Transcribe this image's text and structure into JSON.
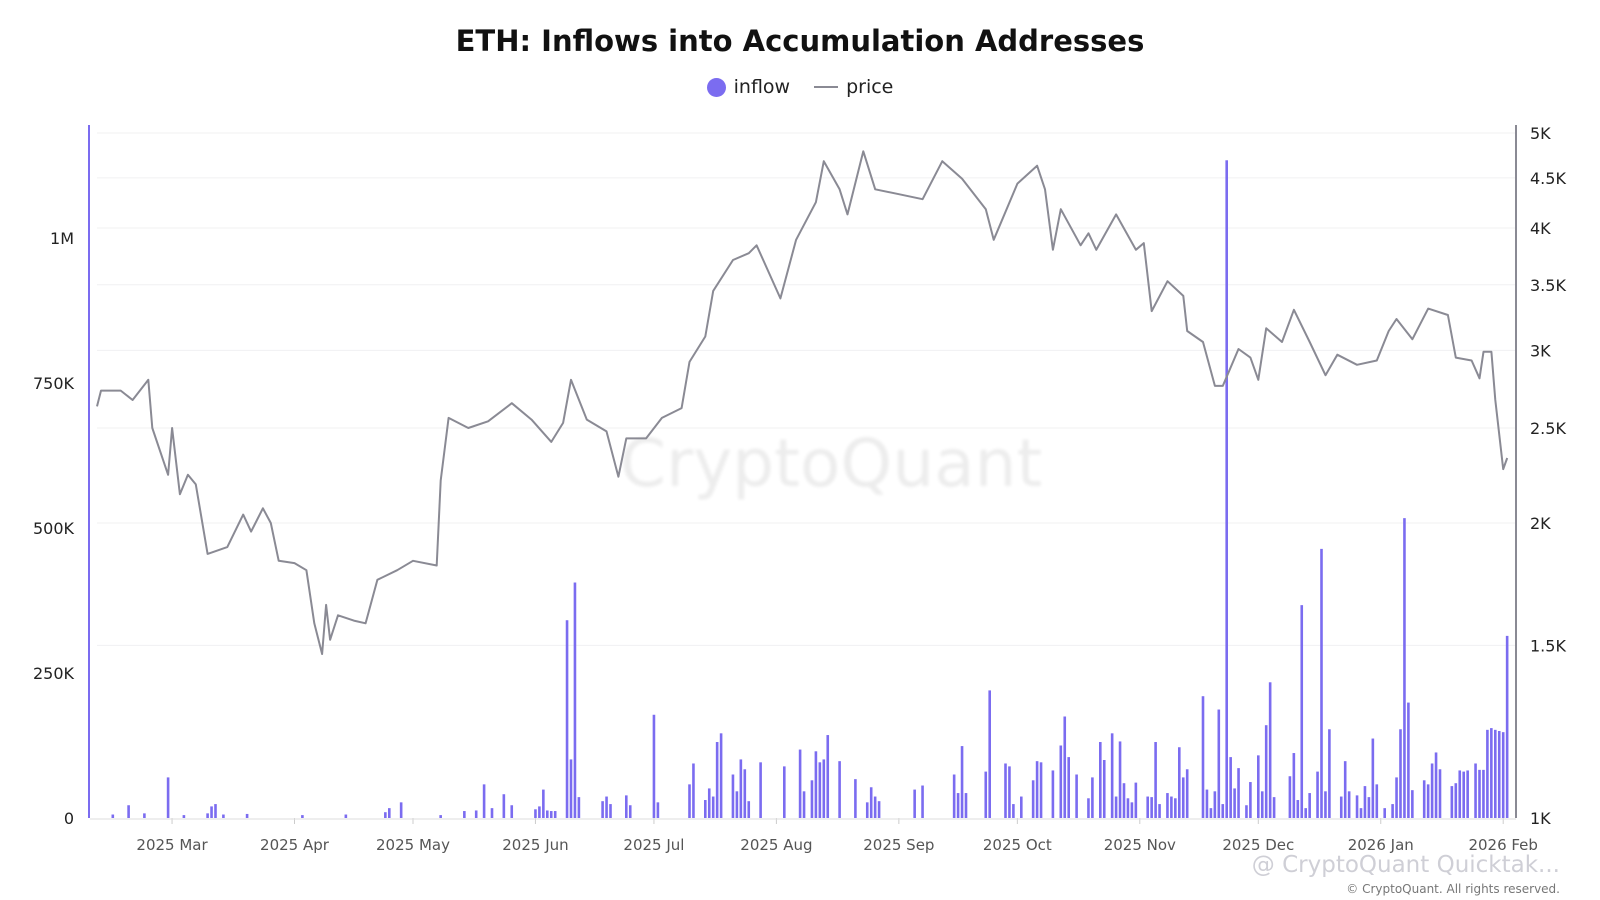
{
  "title": "ETH: Inflows into Accumulation Addresses",
  "watermark": "CryptoQuant",
  "footer": {
    "overlay": "@ CryptoQuant Quicktak...",
    "copyright": "© CryptoQuant. All rights reserved."
  },
  "colors": {
    "inflow": "#7b6cf0",
    "price": "#8a8a94",
    "grid": "#f0f0f2"
  },
  "chart_data": {
    "type": "bar+line",
    "title": "ETH: Inflows into Accumulation Addresses",
    "legend": {
      "placement": "top-center",
      "entries": [
        "inflow",
        "price"
      ]
    },
    "x_ticks": [
      "2025 Mar",
      "2025 Apr",
      "2025 May",
      "2025 Jun",
      "2025 Jul",
      "2025 Aug",
      "2025 Sep",
      "2025 Oct",
      "2025 Nov",
      "2025 Dec",
      "2026 Jan",
      "2026 Feb"
    ],
    "x_tick_dates": [
      "2025-03-01",
      "2025-04-01",
      "2025-05-01",
      "2025-06-01",
      "2025-07-01",
      "2025-08-01",
      "2025-09-01",
      "2025-10-01",
      "2025-11-01",
      "2025-12-01",
      "2026-01-01",
      "2026-02-01"
    ],
    "xlim": [
      "2025-02-10",
      "2026-02-03"
    ],
    "y_left": {
      "ticks": [
        0,
        250000,
        500000,
        750000,
        1000000
      ],
      "tick_labels": [
        "0",
        "250K",
        "500K",
        "750K",
        "1M"
      ],
      "ylim": [
        0,
        1200000
      ]
    },
    "y_right": {
      "scale": "log",
      "ticks": [
        1000,
        1500,
        2000,
        2500,
        3000,
        3500,
        4000,
        4500,
        5000
      ],
      "tick_labels": [
        "1K",
        "1.5K",
        "2K",
        "2.5K",
        "3K",
        "3.5K",
        "4K",
        "4.5K",
        "5K"
      ],
      "ylim": [
        1000,
        5000
      ]
    },
    "grid": true,
    "series": [
      {
        "name": "inflow",
        "type": "bar",
        "axis": "left",
        "dates": [
          "2025-02-14",
          "2025-02-18",
          "2025-02-22",
          "2025-02-28",
          "2025-03-04",
          "2025-03-10",
          "2025-03-11",
          "2025-03-12",
          "2025-03-14",
          "2025-03-20",
          "2025-04-03",
          "2025-04-14",
          "2025-04-24",
          "2025-04-25",
          "2025-04-28",
          "2025-05-08",
          "2025-05-14",
          "2025-05-17",
          "2025-05-19",
          "2025-05-21",
          "2025-05-24",
          "2025-05-26",
          "2025-06-01",
          "2025-06-02",
          "2025-06-03",
          "2025-06-04",
          "2025-06-05",
          "2025-06-06",
          "2025-06-09",
          "2025-06-10",
          "2025-06-11",
          "2025-06-12",
          "2025-06-18",
          "2025-06-19",
          "2025-06-20",
          "2025-06-24",
          "2025-06-25",
          "2025-07-01",
          "2025-07-02",
          "2025-07-10",
          "2025-07-11",
          "2025-07-14",
          "2025-07-15",
          "2025-07-16",
          "2025-07-17",
          "2025-07-18",
          "2025-07-21",
          "2025-07-22",
          "2025-07-23",
          "2025-07-24",
          "2025-07-25",
          "2025-07-28",
          "2025-08-03",
          "2025-08-07",
          "2025-08-08",
          "2025-08-10",
          "2025-08-11",
          "2025-08-12",
          "2025-08-13",
          "2025-08-14",
          "2025-08-17",
          "2025-08-21",
          "2025-08-24",
          "2025-08-25",
          "2025-08-26",
          "2025-08-27",
          "2025-09-05",
          "2025-09-07",
          "2025-09-15",
          "2025-09-16",
          "2025-09-17",
          "2025-09-18",
          "2025-09-23",
          "2025-09-24",
          "2025-09-28",
          "2025-09-29",
          "2025-09-30",
          "2025-10-02",
          "2025-10-05",
          "2025-10-06",
          "2025-10-07",
          "2025-10-10",
          "2025-10-12",
          "2025-10-13",
          "2025-10-14",
          "2025-10-16",
          "2025-10-19",
          "2025-10-20",
          "2025-10-22",
          "2025-10-23",
          "2025-10-25",
          "2025-10-26",
          "2025-10-27",
          "2025-10-28",
          "2025-10-29",
          "2025-10-30",
          "2025-10-31",
          "2025-11-03",
          "2025-11-04",
          "2025-11-05",
          "2025-11-06",
          "2025-11-08",
          "2025-11-09",
          "2025-11-10",
          "2025-11-11",
          "2025-11-12",
          "2025-11-13",
          "2025-11-17",
          "2025-11-18",
          "2025-11-19",
          "2025-11-20",
          "2025-11-21",
          "2025-11-22",
          "2025-11-23",
          "2025-11-24",
          "2025-11-25",
          "2025-11-26",
          "2025-11-28",
          "2025-11-29",
          "2025-12-01",
          "2025-12-02",
          "2025-12-03",
          "2025-12-04",
          "2025-12-05",
          "2025-12-09",
          "2025-12-10",
          "2025-12-11",
          "2025-12-12",
          "2025-12-13",
          "2025-12-14",
          "2025-12-16",
          "2025-12-17",
          "2025-12-18",
          "2025-12-19",
          "2025-12-22",
          "2025-12-23",
          "2025-12-24",
          "2025-12-26",
          "2025-12-27",
          "2025-12-28",
          "2025-12-29",
          "2025-12-30",
          "2025-12-31",
          "2026-01-02",
          "2026-01-04",
          "2026-01-05",
          "2026-01-06",
          "2026-01-07",
          "2026-01-08",
          "2026-01-09",
          "2026-01-12",
          "2026-01-13",
          "2026-01-14",
          "2026-01-15",
          "2026-01-16",
          "2026-01-19",
          "2026-01-20",
          "2026-01-21",
          "2026-01-22",
          "2026-01-23",
          "2026-01-25",
          "2026-01-26",
          "2026-01-27",
          "2026-01-28",
          "2026-01-29",
          "2026-01-30",
          "2026-01-31",
          "2026-02-01",
          "2026-02-02"
        ],
        "values": [
          6000,
          22000,
          8000,
          70000,
          5000,
          8000,
          20000,
          24000,
          6000,
          7000,
          5000,
          6000,
          10000,
          17000,
          27000,
          5000,
          12000,
          13000,
          58000,
          17000,
          41000,
          22000,
          15000,
          20000,
          49000,
          13000,
          12000,
          12000,
          341000,
          101000,
          406000,
          36000,
          29000,
          37000,
          24000,
          39000,
          22000,
          178000,
          27000,
          58000,
          94000,
          31000,
          51000,
          37000,
          131000,
          146000,
          75000,
          46000,
          101000,
          84000,
          29000,
          96000,
          89000,
          118000,
          46000,
          65000,
          115000,
          96000,
          101000,
          143000,
          98000,
          67000,
          27000,
          53000,
          37000,
          29000,
          49000,
          56000,
          75000,
          43000,
          124000,
          43000,
          80000,
          220000,
          94000,
          89000,
          24000,
          37000,
          65000,
          98000,
          96000,
          82000,
          125000,
          175000,
          105000,
          75000,
          34000,
          70000,
          131000,
          100000,
          146000,
          37000,
          132000,
          60000,
          34000,
          27000,
          61000,
          37000,
          36000,
          131000,
          24000,
          43000,
          37000,
          34000,
          122000,
          70000,
          84000,
          210000,
          49000,
          17000,
          46000,
          187000,
          24000,
          1134000,
          105000,
          51000,
          86000,
          22000,
          62000,
          108000,
          46000,
          160000,
          234000,
          36000,
          72000,
          112000,
          31000,
          367000,
          17000,
          43000,
          80000,
          464000,
          46000,
          153000,
          37000,
          98000,
          46000,
          39000,
          17000,
          55000,
          36000,
          137000,
          58000,
          17000,
          24000,
          70000,
          153000,
          517000,
          199000,
          48000,
          65000,
          58000,
          94000,
          113000,
          84000,
          55000,
          60000,
          82000,
          80000,
          82000,
          94000,
          83000,
          83000,
          152000,
          155000,
          152000,
          150000,
          148000,
          314000
        ]
      },
      {
        "name": "price",
        "type": "line",
        "axis": "right",
        "dates": [
          "2025-02-10",
          "2025-02-11",
          "2025-02-16",
          "2025-02-19",
          "2025-02-23",
          "2025-02-24",
          "2025-02-28",
          "2025-03-01",
          "2025-03-03",
          "2025-03-05",
          "2025-03-07",
          "2025-03-10",
          "2025-03-15",
          "2025-03-19",
          "2025-03-21",
          "2025-03-24",
          "2025-03-26",
          "2025-03-28",
          "2025-04-01",
          "2025-04-04",
          "2025-04-06",
          "2025-04-08",
          "2025-04-09",
          "2025-04-10",
          "2025-04-12",
          "2025-04-16",
          "2025-04-19",
          "2025-04-22",
          "2025-04-27",
          "2025-05-01",
          "2025-05-07",
          "2025-05-08",
          "2025-05-10",
          "2025-05-15",
          "2025-05-20",
          "2025-05-26",
          "2025-05-31",
          "2025-06-05",
          "2025-06-08",
          "2025-06-10",
          "2025-06-14",
          "2025-06-19",
          "2025-06-22",
          "2025-06-24",
          "2025-06-29",
          "2025-07-03",
          "2025-07-08",
          "2025-07-10",
          "2025-07-14",
          "2025-07-16",
          "2025-07-21",
          "2025-07-25",
          "2025-07-27",
          "2025-08-02",
          "2025-08-06",
          "2025-08-11",
          "2025-08-13",
          "2025-08-17",
          "2025-08-19",
          "2025-08-23",
          "2025-08-26",
          "2025-09-01",
          "2025-09-07",
          "2025-09-12",
          "2025-09-17",
          "2025-09-23",
          "2025-09-25",
          "2025-10-01",
          "2025-10-06",
          "2025-10-08",
          "2025-10-10",
          "2025-10-12",
          "2025-10-17",
          "2025-10-19",
          "2025-10-21",
          "2025-10-26",
          "2025-10-31",
          "2025-11-02",
          "2025-11-04",
          "2025-11-08",
          "2025-11-12",
          "2025-11-13",
          "2025-11-17",
          "2025-11-20",
          "2025-11-22",
          "2025-11-26",
          "2025-11-29",
          "2025-12-01",
          "2025-12-03",
          "2025-12-07",
          "2025-12-10",
          "2025-12-14",
          "2025-12-18",
          "2025-12-21",
          "2025-12-26",
          "2025-12-31",
          "2026-01-03",
          "2026-01-05",
          "2026-01-09",
          "2026-01-13",
          "2026-01-18",
          "2026-01-20",
          "2026-01-24",
          "2026-01-26",
          "2026-01-27",
          "2026-01-29",
          "2026-01-30",
          "2026-02-01",
          "2026-02-02"
        ],
        "values": [
          2630,
          2730,
          2730,
          2670,
          2800,
          2500,
          2240,
          2500,
          2140,
          2240,
          2190,
          1860,
          1890,
          2040,
          1960,
          2070,
          2000,
          1830,
          1820,
          1790,
          1580,
          1470,
          1650,
          1520,
          1610,
          1590,
          1580,
          1750,
          1790,
          1830,
          1810,
          2210,
          2560,
          2500,
          2540,
          2650,
          2550,
          2420,
          2530,
          2800,
          2550,
          2480,
          2230,
          2440,
          2440,
          2560,
          2620,
          2920,
          3100,
          3450,
          3710,
          3770,
          3840,
          3390,
          3890,
          4250,
          4680,
          4380,
          4130,
          4790,
          4380,
          4330,
          4280,
          4680,
          4490,
          4180,
          3890,
          4440,
          4630,
          4380,
          3800,
          4180,
          3840,
          3950,
          3800,
          4130,
          3800,
          3860,
          3290,
          3530,
          3410,
          3140,
          3060,
          2760,
          2760,
          3010,
          2950,
          2800,
          3160,
          3060,
          3300,
          3060,
          2830,
          2970,
          2900,
          2930,
          3140,
          3230,
          3080,
          3310,
          3260,
          2950,
          2930,
          2810,
          2990,
          2990,
          2670,
          2270,
          2330
        ]
      }
    ]
  }
}
